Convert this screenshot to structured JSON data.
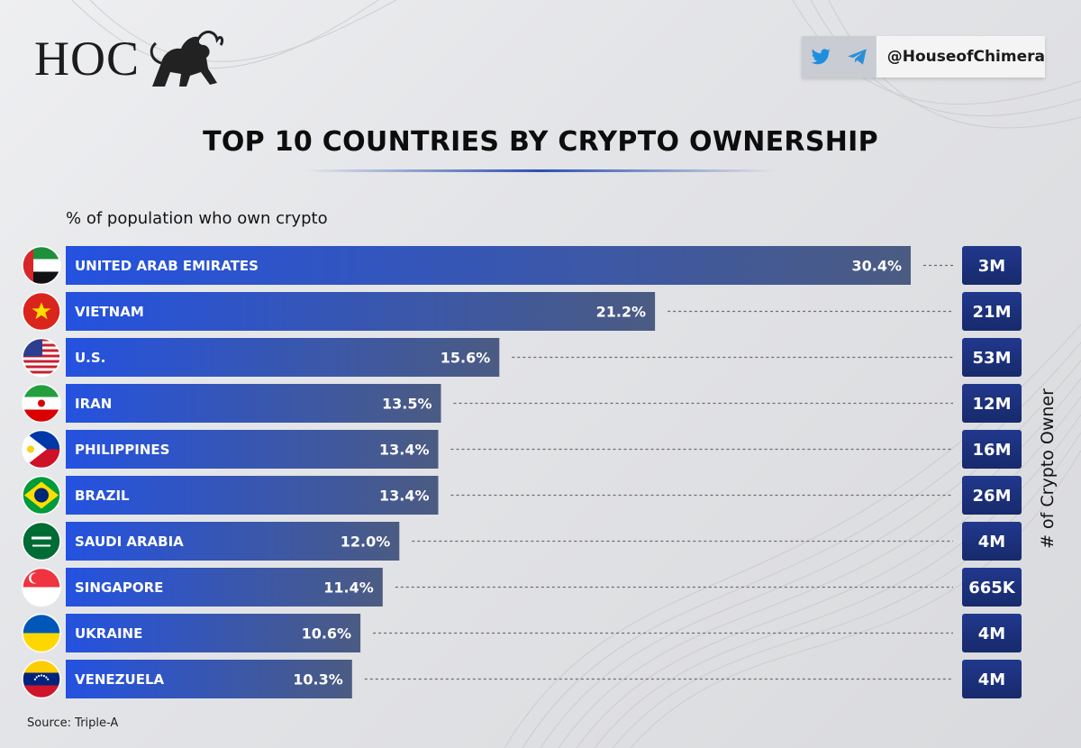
{
  "brand": {
    "logo_text": "HOC",
    "handle": "@HouseofChimera"
  },
  "social_icons": [
    "twitter-icon",
    "telegram-icon"
  ],
  "title": "TOP 10 COUNTRIES BY CRYPTO OWNERSHIP",
  "subtitle": "% of population who own crypto",
  "side_label": "# of Crypto Owner",
  "source": "Source: Triple-A",
  "colors": {
    "bar_start": "#2452e0",
    "bar_end": "#4a5a80",
    "owner_box": "#1c2f78",
    "rule": "#2d4fb3"
  },
  "chart_data": {
    "type": "bar",
    "orientation": "horizontal",
    "title": "TOP 10 COUNTRIES BY CRYPTO OWNERSHIP",
    "xlabel": "% of population who own crypto",
    "ylabel": "# of Crypto Owner",
    "categories": [
      "UNITED ARAB EMIRATES",
      "VIETNAM",
      "U.S.",
      "IRAN",
      "PHILIPPINES",
      "BRAZIL",
      "SAUDI ARABIA",
      "SINGAPORE",
      "UKRAINE",
      "VENEZUELA"
    ],
    "values": [
      30.4,
      21.2,
      15.6,
      13.5,
      13.4,
      13.4,
      12.0,
      11.4,
      10.6,
      10.3
    ],
    "value_labels": [
      "30.4%",
      "21.2%",
      "15.6%",
      "13.5%",
      "13.4%",
      "13.4%",
      "12.0%",
      "11.4%",
      "10.6%",
      "10.3%"
    ],
    "owners": [
      "3M",
      "21M",
      "53M",
      "12M",
      "16M",
      "26M",
      "4M",
      "665K",
      "4M",
      "4M"
    ],
    "flags": [
      "uae-flag-icon",
      "vietnam-flag-icon",
      "us-flag-icon",
      "iran-flag-icon",
      "philippines-flag-icon",
      "brazil-flag-icon",
      "saudi-arabia-flag-icon",
      "singapore-flag-icon",
      "ukraine-flag-icon",
      "venezuela-flag-icon"
    ],
    "legend": "none",
    "grid": false
  }
}
